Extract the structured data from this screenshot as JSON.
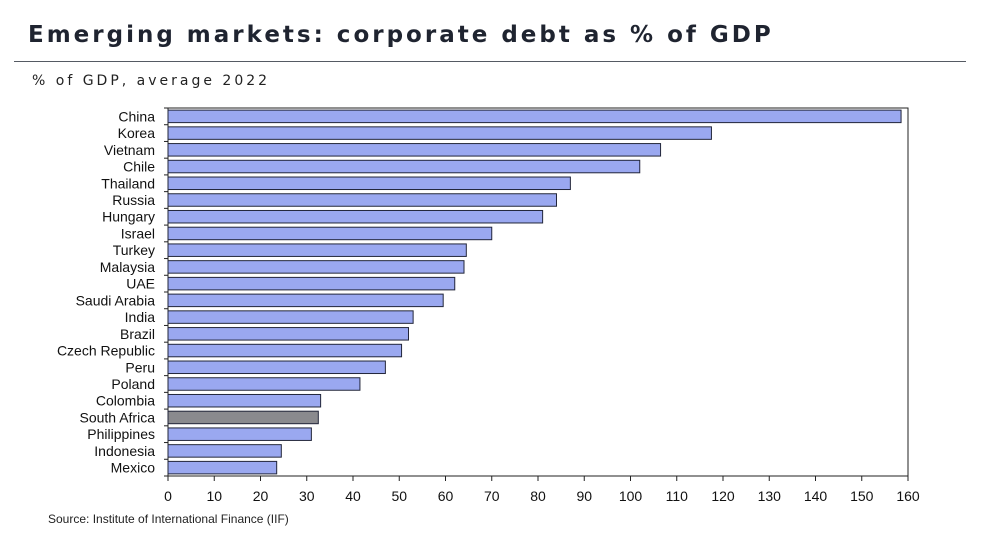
{
  "title": "Emerging markets: corporate debt as % of GDP",
  "subtitle": "% of GDP, average 2022",
  "source": "Source: Institute of International Finance (IIF)",
  "colors": {
    "bar": "#9aa8f0",
    "highlight": "#8a8a8e",
    "bar_outline": "#22263a",
    "axis": "#222222"
  },
  "chart_data": {
    "type": "bar",
    "orientation": "horizontal",
    "categories": [
      "China",
      "Korea",
      "Vietnam",
      "Chile",
      "Thailand",
      "Russia",
      "Hungary",
      "Israel",
      "Turkey",
      "Malaysia",
      "UAE",
      "Saudi Arabia",
      "India",
      "Brazil",
      "Czech Republic",
      "Peru",
      "Poland",
      "Colombia",
      "South Africa",
      "Philippines",
      "Indonesia",
      "Mexico"
    ],
    "values": [
      158.5,
      117.5,
      106.5,
      102,
      87,
      84,
      81,
      70,
      64.5,
      64,
      62,
      59.5,
      53,
      52,
      50.5,
      47,
      41.5,
      33,
      32.5,
      31,
      24.5,
      23.5
    ],
    "highlight": "South Africa",
    "xlim": [
      0,
      160
    ],
    "xticks": [
      0,
      10,
      20,
      30,
      40,
      50,
      60,
      70,
      80,
      90,
      100,
      110,
      120,
      130,
      140,
      150,
      160
    ],
    "xlabel": "",
    "ylabel": ""
  }
}
